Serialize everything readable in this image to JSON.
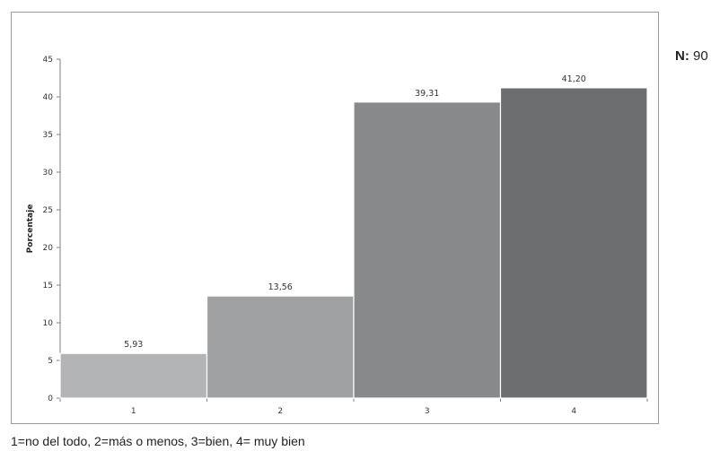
{
  "chart_data": {
    "type": "bar",
    "categories": [
      "1",
      "2",
      "3",
      "4"
    ],
    "values": [
      5.93,
      13.56,
      39.31,
      41.2
    ],
    "value_labels": [
      "5,93",
      "13,56",
      "39,31",
      "41,20"
    ],
    "ylabel": "Porcentaje",
    "xlabel": "",
    "ylim": [
      0,
      45
    ],
    "yticks": [
      0,
      5,
      10,
      15,
      20,
      25,
      30,
      35,
      40,
      45
    ],
    "grid": false,
    "bar_colors": [
      "#b3b4b6",
      "#a0a1a3",
      "#88898b",
      "#6d6e70"
    ]
  },
  "n_label": {
    "key": "N:",
    "value": "90"
  },
  "note": "1=no del todo, 2=más o menos, 3=bien, 4= muy bien"
}
